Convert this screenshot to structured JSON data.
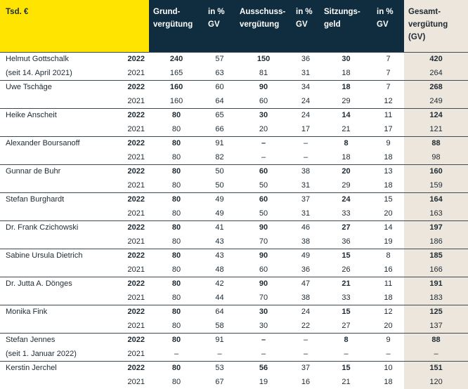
{
  "header": {
    "unit": "Tsd. €",
    "columns": [
      [
        "Grund-",
        "vergütung"
      ],
      [
        "in %",
        "GV"
      ],
      [
        "Ausschuss-",
        "vergütung"
      ],
      [
        "in %",
        "GV"
      ],
      [
        "Sitzungs-",
        "geld"
      ],
      [
        "in %",
        "GV"
      ],
      [
        "Gesamt-",
        "vergütung",
        "(GV)"
      ]
    ]
  },
  "table": {
    "groups": [
      {
        "name": [
          "Helmut Gottschalk",
          "(seit 14. April 2021)"
        ],
        "rows": [
          [
            2022,
            240,
            57,
            150,
            36,
            30,
            7,
            420
          ],
          [
            2021,
            165,
            63,
            81,
            31,
            18,
            7,
            264
          ]
        ]
      },
      {
        "name": [
          "Uwe Tschäge"
        ],
        "rows": [
          [
            2022,
            160,
            60,
            90,
            34,
            18,
            7,
            268
          ],
          [
            2021,
            160,
            64,
            60,
            24,
            29,
            12,
            249
          ]
        ]
      },
      {
        "name": [
          "Heike Anscheit"
        ],
        "rows": [
          [
            2022,
            80,
            65,
            30,
            24,
            14,
            11,
            124
          ],
          [
            2021,
            80,
            66,
            20,
            17,
            21,
            17,
            121
          ]
        ]
      },
      {
        "name": [
          "Alexander Boursanoff"
        ],
        "rows": [
          [
            2022,
            80,
            91,
            "–",
            "–",
            8,
            9,
            88
          ],
          [
            2021,
            80,
            82,
            "–",
            "–",
            18,
            18,
            98
          ]
        ]
      },
      {
        "name": [
          "Gunnar de Buhr"
        ],
        "rows": [
          [
            2022,
            80,
            50,
            60,
            38,
            20,
            13,
            160
          ],
          [
            2021,
            80,
            50,
            50,
            31,
            29,
            18,
            159
          ]
        ]
      },
      {
        "name": [
          "Stefan Burghardt"
        ],
        "rows": [
          [
            2022,
            80,
            49,
            60,
            37,
            24,
            15,
            164
          ],
          [
            2021,
            80,
            49,
            50,
            31,
            33,
            20,
            163
          ]
        ]
      },
      {
        "name": [
          "Dr. Frank Czichowski"
        ],
        "rows": [
          [
            2022,
            80,
            41,
            90,
            46,
            27,
            14,
            197
          ],
          [
            2021,
            80,
            43,
            70,
            38,
            36,
            19,
            186
          ]
        ]
      },
      {
        "name": [
          "Sabine Ursula Dietrich"
        ],
        "rows": [
          [
            2022,
            80,
            43,
            90,
            49,
            15,
            8,
            185
          ],
          [
            2021,
            80,
            48,
            60,
            36,
            26,
            16,
            166
          ]
        ]
      },
      {
        "name": [
          "Dr. Jutta A. Dönges"
        ],
        "rows": [
          [
            2022,
            80,
            42,
            90,
            47,
            21,
            11,
            191
          ],
          [
            2021,
            80,
            44,
            70,
            38,
            33,
            18,
            183
          ]
        ]
      },
      {
        "name": [
          "Monika Fink"
        ],
        "rows": [
          [
            2022,
            80,
            64,
            30,
            24,
            15,
            12,
            125
          ],
          [
            2021,
            80,
            58,
            30,
            22,
            27,
            20,
            137
          ]
        ]
      },
      {
        "name": [
          "Stefan Jennes",
          "(seit 1. Januar 2022)"
        ],
        "rows": [
          [
            2022,
            80,
            91,
            "–",
            "–",
            8,
            9,
            88
          ],
          [
            2021,
            "–",
            "–",
            "–",
            "–",
            "–",
            "–",
            "–"
          ]
        ]
      },
      {
        "name": [
          "Kerstin Jerchel"
        ],
        "rows": [
          [
            2022,
            80,
            53,
            56,
            37,
            15,
            10,
            151
          ],
          [
            2021,
            80,
            67,
            19,
            16,
            21,
            18,
            120
          ]
        ]
      }
    ]
  }
}
